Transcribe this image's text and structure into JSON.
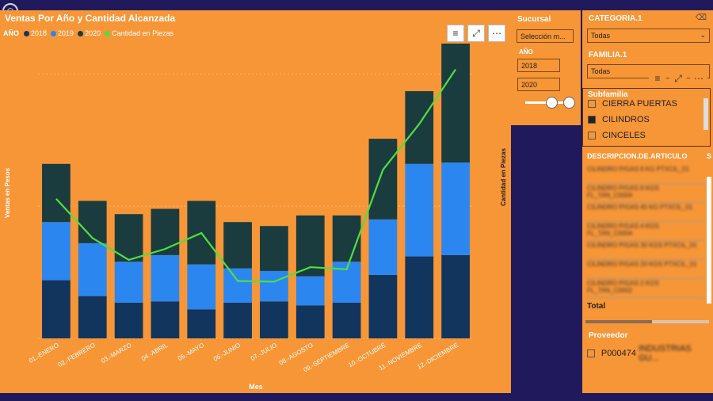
{
  "chart": {
    "title": "Ventas Por Año y Cantidad Alcanzada",
    "legend_title": "AÑO",
    "legend": [
      {
        "label": "2018",
        "color": "#12355e"
      },
      {
        "label": "2019",
        "color": "#2c86f0"
      },
      {
        "label": "2020",
        "color": "#1b3c3e"
      },
      {
        "label": "Cantidad en Piezas",
        "color": "#4ee040"
      }
    ],
    "xlabel": "Mes",
    "ylabel_left": "Ventas en Pesos",
    "ylabel_right": "Cantidad en Piezas"
  },
  "chart_data": {
    "type": "bar",
    "stacked": true,
    "categories": [
      "01.-ENERO",
      "02.-FEBRERO",
      "03.-MARZO",
      "04.-ABRIL",
      "05.-MAYO",
      "06.-JUNIO",
      "07.-JULIO",
      "08.-AGOSTO",
      "09.-SEPTIEMBRE",
      "10.-OCTUBRE",
      "11.-NOVIEMBRE",
      "12.-DICIEMBRE"
    ],
    "series": [
      {
        "name": "2018",
        "values": [
          0.44,
          0.32,
          0.27,
          0.28,
          0.22,
          0.27,
          0.28,
          0.25,
          0.27,
          0.48,
          0.62,
          0.63
        ]
      },
      {
        "name": "2019",
        "values": [
          0.44,
          0.4,
          0.31,
          0.35,
          0.34,
          0.26,
          0.23,
          0.22,
          0.31,
          0.42,
          0.7,
          0.7
        ]
      },
      {
        "name": "2020",
        "values": [
          0.44,
          0.32,
          0.36,
          0.35,
          0.48,
          0.35,
          0.34,
          0.46,
          0.35,
          0.61,
          0.55,
          0.9
        ]
      }
    ],
    "line": {
      "name": "Cantidad en Piezas",
      "values": [
        1.92,
        1.38,
        1.08,
        1.23,
        1.45,
        0.79,
        0.78,
        0.98,
        0.95,
        2.32,
        2.95,
        3.7
      ]
    },
    "ylim_left": [
      0,
      2.2
    ],
    "ylim_right": [
      0,
      4.0
    ]
  },
  "sucursal": {
    "title": "Sucursal",
    "value": "Selección m..."
  },
  "anio": {
    "title": "AÑO",
    "from": "2018",
    "to": "2020"
  },
  "categoria": {
    "title": "CATEGORIA.1",
    "value": "Todas"
  },
  "familia": {
    "title": "FAMILIA.1",
    "value": "Todas"
  },
  "subfamilia": {
    "title": "Subfamilia",
    "items": [
      {
        "label": "CIERRA PUERTAS",
        "checked": false
      },
      {
        "label": "CILINDROS",
        "checked": true
      },
      {
        "label": "CINCELES",
        "checked": false
      }
    ]
  },
  "articulos": {
    "header": "DESCRIPCION.DE.ARTICULO",
    "header_right": "S",
    "rows": [
      "CILINDRO P/GAS 8 KG PTXCIL_01",
      "CILINDRO P/GAS 8 KGS FL_TAN_C0004",
      "CILINDRO P/GAS 45 KG PTXCIL_01",
      "CILINDRO P/GAS 4 KGS FL_TAN_C0004",
      "CILINDRO P/GAS 30 KGS PTXCIL_01",
      "CILINDRO P/GAS 20 KGS PTXCIL_01",
      "CILINDRO P/GAS 2 KGS FL_TAN_C0002"
    ],
    "total_label": "Total"
  },
  "proveedor": {
    "title": "Proveedor",
    "item": "P000474",
    "item_blur": "INDUSTRIAS GU..."
  },
  "icons": {
    "filter": "filter-icon",
    "focus": "focus-mode-icon",
    "more": "more-options-icon"
  }
}
